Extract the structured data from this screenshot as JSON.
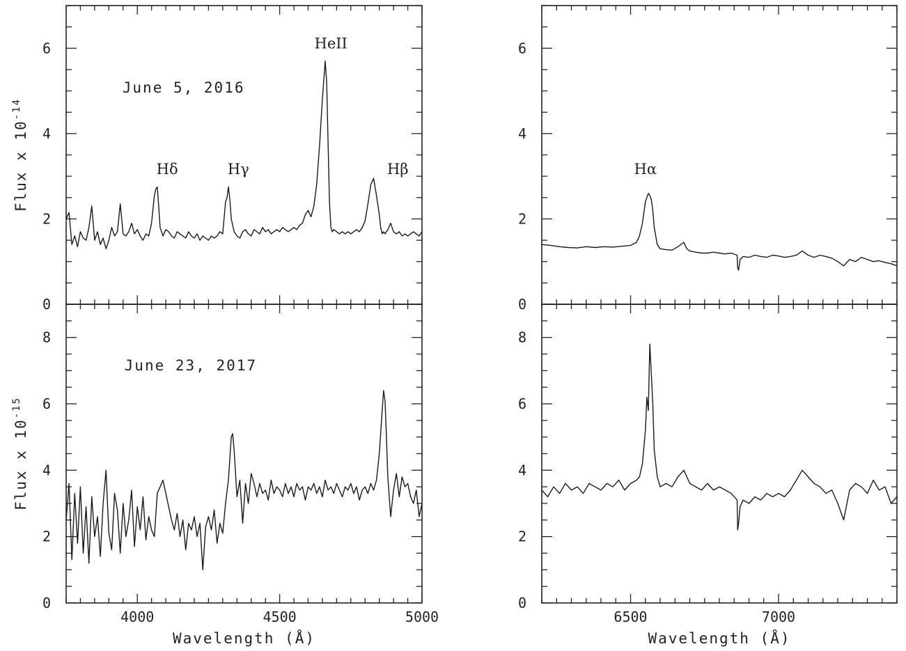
{
  "chart_data": [
    {
      "id": "p-tl",
      "type": "line",
      "date": "June 5, 2016",
      "ylabel": "Flux x 10",
      "ylabel_exp": "-14",
      "xlim": [
        3750,
        5000
      ],
      "ylim": [
        0,
        7
      ],
      "yticks": [
        0,
        2,
        4,
        6
      ],
      "xticks": [],
      "annotations": [
        {
          "text": "Hδ",
          "x": 4105,
          "y": 3.05
        },
        {
          "text": "Hγ",
          "x": 4355,
          "y": 3.05
        },
        {
          "text": "HeII",
          "x": 4680,
          "y": 6.0
        },
        {
          "text": "Hβ",
          "x": 4915,
          "y": 3.05
        }
      ],
      "series": [
        {
          "x": [
            3750,
            3760,
            3770,
            3780,
            3790,
            3800,
            3810,
            3820,
            3830,
            3840,
            3850,
            3860,
            3870,
            3880,
            3890,
            3900,
            3910,
            3920,
            3930,
            3940,
            3950,
            3960,
            3970,
            3980,
            3990,
            4000,
            4010,
            4020,
            4030,
            4040,
            4050,
            4060,
            4065,
            4070,
            4075,
            4080,
            4090,
            4100,
            4110,
            4120,
            4130,
            4140,
            4150,
            4160,
            4170,
            4180,
            4190,
            4200,
            4210,
            4220,
            4230,
            4240,
            4250,
            4260,
            4270,
            4280,
            4290,
            4300,
            4310,
            4315,
            4320,
            4325,
            4330,
            4340,
            4350,
            4360,
            4370,
            4380,
            4390,
            4400,
            4410,
            4420,
            4430,
            4440,
            4450,
            4460,
            4470,
            4480,
            4490,
            4500,
            4510,
            4520,
            4530,
            4540,
            4550,
            4560,
            4570,
            4580,
            4590,
            4600,
            4610,
            4620,
            4630,
            4640,
            4650,
            4660,
            4665,
            4670,
            4675,
            4680,
            4685,
            4690,
            4700,
            4710,
            4720,
            4730,
            4740,
            4750,
            4760,
            4770,
            4780,
            4790,
            4800,
            4810,
            4820,
            4830,
            4840,
            4850,
            4855,
            4860,
            4865,
            4870,
            4875,
            4880,
            4890,
            4900,
            4910,
            4920,
            4930,
            4940,
            4950,
            4960,
            4970,
            4980,
            4990,
            5000
          ],
          "y": [
            2.0,
            2.15,
            1.4,
            1.6,
            1.35,
            1.7,
            1.55,
            1.5,
            1.8,
            2.3,
            1.5,
            1.7,
            1.4,
            1.55,
            1.3,
            1.5,
            1.8,
            1.6,
            1.7,
            2.35,
            1.65,
            1.6,
            1.7,
            1.9,
            1.65,
            1.75,
            1.6,
            1.5,
            1.65,
            1.6,
            1.9,
            2.55,
            2.7,
            2.75,
            2.3,
            1.8,
            1.6,
            1.75,
            1.7,
            1.6,
            1.55,
            1.7,
            1.65,
            1.6,
            1.55,
            1.7,
            1.6,
            1.55,
            1.65,
            1.5,
            1.6,
            1.55,
            1.5,
            1.6,
            1.55,
            1.6,
            1.7,
            1.65,
            2.4,
            2.5,
            2.75,
            2.45,
            2.0,
            1.7,
            1.6,
            1.55,
            1.7,
            1.75,
            1.65,
            1.6,
            1.75,
            1.7,
            1.65,
            1.8,
            1.7,
            1.75,
            1.65,
            1.7,
            1.75,
            1.7,
            1.8,
            1.75,
            1.7,
            1.75,
            1.8,
            1.75,
            1.85,
            1.9,
            2.1,
            2.2,
            2.05,
            2.3,
            2.8,
            3.7,
            4.8,
            5.7,
            5.2,
            3.8,
            2.4,
            1.8,
            1.7,
            1.75,
            1.7,
            1.65,
            1.7,
            1.65,
            1.7,
            1.65,
            1.7,
            1.75,
            1.7,
            1.8,
            1.95,
            2.35,
            2.8,
            2.95,
            2.55,
            2.1,
            1.8,
            1.65,
            1.7,
            1.65,
            1.7,
            1.75,
            1.9,
            1.7,
            1.65,
            1.7,
            1.6,
            1.65,
            1.6,
            1.65,
            1.7,
            1.65,
            1.6,
            1.7
          ]
        }
      ]
    },
    {
      "id": "p-tr",
      "type": "line",
      "xlim": [
        6200,
        7400
      ],
      "ylim": [
        0,
        7
      ],
      "yticks": [
        0,
        2,
        4,
        6
      ],
      "xticks": [],
      "annotations": [
        {
          "text": "Hα",
          "x": 6550,
          "y": 3.05
        }
      ],
      "series": [
        {
          "x": [
            6200,
            6230,
            6260,
            6290,
            6320,
            6350,
            6380,
            6410,
            6440,
            6470,
            6500,
            6520,
            6530,
            6540,
            6550,
            6560,
            6565,
            6570,
            6575,
            6580,
            6590,
            6600,
            6620,
            6640,
            6660,
            6680,
            6690,
            6700,
            6720,
            6740,
            6760,
            6780,
            6800,
            6820,
            6840,
            6860,
            6862,
            6865,
            6870,
            6880,
            6900,
            6920,
            6940,
            6960,
            6980,
            7000,
            7020,
            7040,
            7060,
            7080,
            7100,
            7120,
            7140,
            7160,
            7180,
            7200,
            7220,
            7240,
            7260,
            7280,
            7300,
            7320,
            7340,
            7360,
            7380,
            7400
          ],
          "y": [
            1.4,
            1.38,
            1.35,
            1.33,
            1.32,
            1.35,
            1.33,
            1.35,
            1.34,
            1.36,
            1.38,
            1.45,
            1.6,
            1.9,
            2.4,
            2.6,
            2.55,
            2.45,
            2.2,
            1.8,
            1.4,
            1.3,
            1.28,
            1.27,
            1.35,
            1.45,
            1.3,
            1.25,
            1.22,
            1.2,
            1.2,
            1.22,
            1.2,
            1.18,
            1.2,
            1.15,
            0.85,
            0.8,
            1.05,
            1.12,
            1.1,
            1.15,
            1.12,
            1.1,
            1.15,
            1.13,
            1.1,
            1.12,
            1.15,
            1.25,
            1.15,
            1.1,
            1.15,
            1.12,
            1.08,
            1.0,
            0.9,
            1.05,
            1.0,
            1.1,
            1.05,
            1.0,
            1.02,
            0.98,
            0.95,
            0.9
          ]
        }
      ]
    },
    {
      "id": "p-bl",
      "type": "line",
      "date": "June 23, 2017",
      "ylabel": "Flux x 10",
      "ylabel_exp": "-15",
      "xlabel": "Wavelength (Å)",
      "xlim": [
        3750,
        5000
      ],
      "ylim": [
        0,
        9
      ],
      "yticks": [
        0,
        2,
        4,
        6,
        8
      ],
      "xticks": [
        4000,
        4500,
        5000
      ],
      "annotations": [],
      "series": [
        {
          "x": [
            3750,
            3760,
            3770,
            3780,
            3790,
            3800,
            3810,
            3820,
            3830,
            3840,
            3850,
            3860,
            3870,
            3880,
            3890,
            3900,
            3910,
            3920,
            3930,
            3940,
            3950,
            3960,
            3970,
            3980,
            3990,
            4000,
            4010,
            4020,
            4030,
            4040,
            4050,
            4060,
            4070,
            4080,
            4090,
            4100,
            4110,
            4120,
            4130,
            4140,
            4150,
            4160,
            4170,
            4180,
            4190,
            4200,
            4210,
            4220,
            4230,
            4240,
            4250,
            4260,
            4270,
            4280,
            4290,
            4300,
            4310,
            4320,
            4330,
            4335,
            4340,
            4350,
            4360,
            4370,
            4380,
            4390,
            4400,
            4410,
            4420,
            4430,
            4440,
            4450,
            4460,
            4470,
            4480,
            4490,
            4500,
            4510,
            4520,
            4530,
            4540,
            4550,
            4560,
            4570,
            4580,
            4590,
            4600,
            4610,
            4620,
            4630,
            4640,
            4650,
            4660,
            4670,
            4680,
            4690,
            4700,
            4710,
            4720,
            4730,
            4740,
            4750,
            4760,
            4770,
            4780,
            4790,
            4800,
            4810,
            4820,
            4830,
            4840,
            4850,
            4860,
            4865,
            4870,
            4875,
            4880,
            4890,
            4900,
            4910,
            4920,
            4930,
            4940,
            4950,
            4960,
            4970,
            4980,
            4990,
            5000
          ],
          "y": [
            2.5,
            3.6,
            1.3,
            3.3,
            1.8,
            3.5,
            1.5,
            2.9,
            1.2,
            3.2,
            2.0,
            2.6,
            1.4,
            3.0,
            4.0,
            2.1,
            1.6,
            3.3,
            2.8,
            1.5,
            3.0,
            2.0,
            2.5,
            3.4,
            1.7,
            2.9,
            2.2,
            3.2,
            1.9,
            2.6,
            2.2,
            2.0,
            3.3,
            3.5,
            3.7,
            3.3,
            2.9,
            2.5,
            2.2,
            2.7,
            2.0,
            2.5,
            1.6,
            2.4,
            2.2,
            2.6,
            2.0,
            2.4,
            1.0,
            2.3,
            2.6,
            2.2,
            2.8,
            1.8,
            2.4,
            2.1,
            3.0,
            3.7,
            5.0,
            5.1,
            4.6,
            3.2,
            3.7,
            2.4,
            3.6,
            3.0,
            3.9,
            3.6,
            3.2,
            3.6,
            3.3,
            3.4,
            3.1,
            3.7,
            3.3,
            3.5,
            3.4,
            3.2,
            3.6,
            3.3,
            3.5,
            3.2,
            3.6,
            3.4,
            3.5,
            3.1,
            3.5,
            3.4,
            3.6,
            3.3,
            3.5,
            3.2,
            3.7,
            3.4,
            3.5,
            3.3,
            3.6,
            3.4,
            3.2,
            3.5,
            3.4,
            3.6,
            3.3,
            3.5,
            3.1,
            3.4,
            3.5,
            3.3,
            3.6,
            3.4,
            3.7,
            4.5,
            5.8,
            6.4,
            6.1,
            5.0,
            3.8,
            2.6,
            3.4,
            3.9,
            3.2,
            3.8,
            3.5,
            3.6,
            3.2,
            3.0,
            3.4,
            2.6,
            3.0
          ]
        }
      ]
    },
    {
      "id": "p-br",
      "type": "line",
      "xlabel": "Wavelength (Å)",
      "xlim": [
        6200,
        7400
      ],
      "ylim": [
        0,
        9
      ],
      "yticks": [
        0,
        2,
        4,
        6,
        8
      ],
      "xticks": [
        6500,
        7000
      ],
      "annotations": [],
      "series": [
        {
          "x": [
            6200,
            6220,
            6240,
            6260,
            6280,
            6300,
            6320,
            6340,
            6360,
            6380,
            6400,
            6420,
            6440,
            6460,
            6480,
            6500,
            6520,
            6530,
            6540,
            6550,
            6555,
            6560,
            6565,
            6570,
            6575,
            6580,
            6590,
            6600,
            6620,
            6640,
            6660,
            6680,
            6700,
            6720,
            6740,
            6760,
            6780,
            6800,
            6820,
            6840,
            6860,
            6862,
            6865,
            6870,
            6880,
            6900,
            6920,
            6940,
            6960,
            6980,
            7000,
            7020,
            7040,
            7060,
            7080,
            7100,
            7120,
            7140,
            7160,
            7180,
            7200,
            7220,
            7240,
            7260,
            7280,
            7300,
            7320,
            7340,
            7360,
            7380,
            7400
          ],
          "y": [
            3.4,
            3.2,
            3.5,
            3.3,
            3.6,
            3.4,
            3.5,
            3.3,
            3.6,
            3.5,
            3.4,
            3.6,
            3.5,
            3.7,
            3.4,
            3.6,
            3.7,
            3.8,
            4.2,
            5.2,
            6.2,
            5.8,
            7.8,
            6.9,
            6.0,
            4.6,
            3.8,
            3.5,
            3.6,
            3.5,
            3.8,
            4.0,
            3.6,
            3.5,
            3.4,
            3.6,
            3.4,
            3.5,
            3.4,
            3.3,
            3.1,
            2.2,
            2.4,
            2.9,
            3.1,
            3.0,
            3.2,
            3.1,
            3.3,
            3.2,
            3.3,
            3.2,
            3.4,
            3.7,
            4.0,
            3.8,
            3.6,
            3.5,
            3.3,
            3.4,
            3.0,
            2.5,
            3.4,
            3.6,
            3.5,
            3.3,
            3.7,
            3.4,
            3.5,
            3.0,
            3.2
          ]
        }
      ]
    }
  ]
}
